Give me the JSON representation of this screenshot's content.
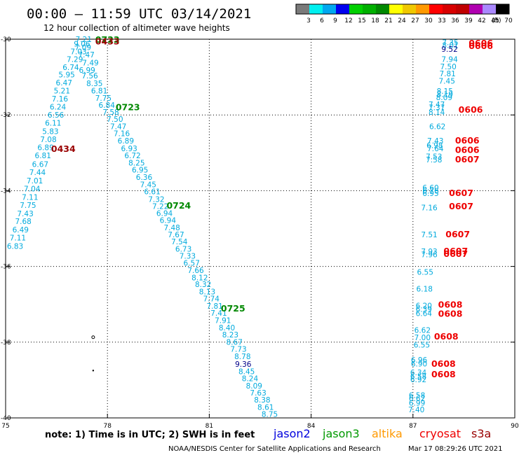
{
  "header": {
    "title": "00:00 – 11:59 UTC 03/14/2021",
    "subtitle": "12 hour collection of altimeter wave heights"
  },
  "colorbar": {
    "unit": "(ft)",
    "ticks": [
      "3",
      "6",
      "9",
      "12",
      "15",
      "18",
      "21",
      "24",
      "27",
      "30",
      "33",
      "36",
      "39",
      "42",
      "45",
      "70"
    ],
    "colors": [
      "#7a7a7a",
      "#00f0f0",
      "#00a8f0",
      "#0000f0",
      "#00d000",
      "#00b000",
      "#008800",
      "#ffff00",
      "#f0c800",
      "#ff9900",
      "#ff0000",
      "#d80000",
      "#c00000",
      "#b000b0",
      "#aa88ff",
      "#000000"
    ]
  },
  "footer": {
    "note": "note:  1) Time is in UTC;  2) SWH is in feet",
    "credit": "NOAA/NESDIS Center for Satellite Applications and Research",
    "timestamp": "Mar 17 08:29:26 UTC 2021"
  },
  "satellites": [
    {
      "name": "jason2",
      "color": "#0000dd"
    },
    {
      "name": "jason3",
      "color": "#009900"
    },
    {
      "name": "altika",
      "color": "#ff9900"
    },
    {
      "name": "cryosat",
      "color": "#ee0000"
    },
    {
      "name": "s3a",
      "color": "#990000"
    }
  ],
  "chart_data": {
    "type": "scatter",
    "title": "00:00 – 11:59 UTC 03/14/2021",
    "xlim": [
      75,
      90
    ],
    "ylim": [
      -40,
      -30
    ],
    "xticks": [
      75,
      78,
      81,
      84,
      87,
      90
    ],
    "yticks": [
      -30,
      -32,
      -34,
      -36,
      -38,
      -40
    ],
    "grid": true,
    "x_tick_labels": [
      "75",
      "78",
      "81",
      "84",
      "87",
      "90"
    ],
    "y_tick_labels": [
      "-30",
      "-32",
      "-34",
      "-36",
      "-38",
      "-40"
    ],
    "series": [
      {
        "name": "jason3",
        "color": "#00aadd",
        "points": [
          {
            "x": 77.3,
            "y": -30.0,
            "v": "7.21"
          },
          {
            "x": 77.25,
            "y": -30.12,
            "v": "9.06"
          },
          {
            "x": 77.28,
            "y": -30.21,
            "v": "7.09"
          },
          {
            "x": 77.15,
            "y": -30.32,
            "v": "7.03"
          },
          {
            "x": 77.38,
            "y": -30.41,
            "v": "7.47"
          },
          {
            "x": 77.04,
            "y": -30.53,
            "v": "7.29"
          },
          {
            "x": 77.5,
            "y": -30.62,
            "v": "7.49"
          },
          {
            "x": 76.92,
            "y": -30.74,
            "v": "6.74"
          },
          {
            "x": 77.4,
            "y": -30.81,
            "v": "6.99"
          },
          {
            "x": 76.8,
            "y": -30.93,
            "v": "5.95"
          },
          {
            "x": 77.48,
            "y": -30.96,
            "v": "7.56"
          },
          {
            "x": 76.72,
            "y": -31.15,
            "v": "6.47"
          },
          {
            "x": 77.62,
            "y": -31.16,
            "v": "8.35"
          },
          {
            "x": 76.66,
            "y": -31.36,
            "v": "5.21"
          },
          {
            "x": 77.76,
            "y": -31.36,
            "v": "6.81"
          },
          {
            "x": 77.88,
            "y": -31.55,
            "v": "7.75"
          },
          {
            "x": 76.6,
            "y": -31.57,
            "v": "7.16"
          },
          {
            "x": 77.98,
            "y": -31.74,
            "v": "6.84"
          },
          {
            "x": 76.54,
            "y": -31.78,
            "v": "6.24"
          },
          {
            "x": 78.1,
            "y": -31.92,
            "v": "7.58"
          },
          {
            "x": 76.48,
            "y": -32.0,
            "v": "6.56"
          },
          {
            "x": 78.22,
            "y": -32.11,
            "v": "7.50"
          },
          {
            "x": 76.4,
            "y": -32.21,
            "v": "6.11"
          },
          {
            "x": 78.32,
            "y": -32.3,
            "v": "7.47"
          },
          {
            "x": 76.32,
            "y": -32.43,
            "v": "5.83"
          },
          {
            "x": 78.42,
            "y": -32.49,
            "v": "7.16"
          },
          {
            "x": 78.54,
            "y": -32.68,
            "v": "6.89"
          },
          {
            "x": 76.26,
            "y": -32.64,
            "v": "7.08"
          },
          {
            "x": 78.64,
            "y": -32.88,
            "v": "6.93"
          },
          {
            "x": 76.18,
            "y": -32.86,
            "v": "6.89"
          },
          {
            "x": 78.74,
            "y": -33.07,
            "v": "6.72"
          },
          {
            "x": 76.1,
            "y": -33.07,
            "v": "6.81"
          },
          {
            "x": 78.86,
            "y": -33.26,
            "v": "8.25"
          },
          {
            "x": 76.02,
            "y": -33.3,
            "v": "6.67"
          },
          {
            "x": 78.96,
            "y": -33.45,
            "v": "6.95"
          },
          {
            "x": 75.94,
            "y": -33.51,
            "v": "7.44"
          },
          {
            "x": 79.08,
            "y": -33.64,
            "v": "6.36"
          },
          {
            "x": 75.86,
            "y": -33.73,
            "v": "7.01"
          },
          {
            "x": 79.2,
            "y": -33.84,
            "v": "7.45"
          },
          {
            "x": 75.78,
            "y": -33.95,
            "v": "7.04"
          },
          {
            "x": 79.32,
            "y": -34.02,
            "v": "6.61"
          },
          {
            "x": 75.72,
            "y": -34.17,
            "v": "7.11"
          },
          {
            "x": 79.44,
            "y": -34.22,
            "v": "7.32"
          },
          {
            "x": 75.66,
            "y": -34.38,
            "v": "7.75"
          },
          {
            "x": 79.56,
            "y": -34.41,
            "v": "7.22"
          },
          {
            "x": 75.58,
            "y": -34.6,
            "v": "7.43"
          },
          {
            "x": 79.68,
            "y": -34.59,
            "v": "6.94"
          },
          {
            "x": 75.52,
            "y": -34.81,
            "v": "7.68"
          },
          {
            "x": 79.78,
            "y": -34.78,
            "v": "6.94"
          },
          {
            "x": 75.44,
            "y": -35.03,
            "v": "6.49"
          },
          {
            "x": 79.9,
            "y": -34.97,
            "v": "7.48"
          },
          {
            "x": 75.36,
            "y": -35.24,
            "v": "7.11"
          },
          {
            "x": 80.02,
            "y": -35.16,
            "v": "7.67"
          },
          {
            "x": 75.28,
            "y": -35.46,
            "v": "6.83"
          },
          {
            "x": 80.12,
            "y": -35.34,
            "v": "7.54"
          },
          {
            "x": 80.24,
            "y": -35.54,
            "v": "6.73"
          },
          {
            "x": 80.36,
            "y": -35.72,
            "v": "7.33"
          },
          {
            "x": 80.48,
            "y": -35.91,
            "v": "6.57"
          },
          {
            "x": 80.6,
            "y": -36.1,
            "v": "7.66"
          },
          {
            "x": 80.72,
            "y": -36.29,
            "v": "8.12"
          },
          {
            "x": 80.82,
            "y": -36.47,
            "v": "8.32"
          },
          {
            "x": 80.94,
            "y": -36.66,
            "v": "8.13"
          },
          {
            "x": 81.06,
            "y": -36.85,
            "v": "7.74"
          },
          {
            "x": 81.16,
            "y": -37.04,
            "v": "7.81"
          },
          {
            "x": 81.28,
            "y": -37.23,
            "v": "7.41"
          },
          {
            "x": 81.4,
            "y": -37.42,
            "v": "7.91"
          },
          {
            "x": 81.52,
            "y": -37.62,
            "v": "8.40"
          },
          {
            "x": 81.62,
            "y": -37.8,
            "v": "8.23"
          },
          {
            "x": 81.74,
            "y": -37.99,
            "v": "8.67"
          },
          {
            "x": 81.86,
            "y": -38.18,
            "v": "7.73"
          },
          {
            "x": 81.98,
            "y": -38.37,
            "v": "8.78"
          },
          {
            "x": 82.1,
            "y": -38.77,
            "v": "8.45"
          },
          {
            "x": 82.2,
            "y": -38.96,
            "v": "8.24"
          },
          {
            "x": 82.32,
            "y": -39.15,
            "v": "8.09"
          },
          {
            "x": 82.44,
            "y": -39.33,
            "v": "7.63"
          },
          {
            "x": 82.56,
            "y": -39.52,
            "v": "8.38"
          },
          {
            "x": 82.66,
            "y": -39.71,
            "v": "8.61"
          },
          {
            "x": 82.78,
            "y": -39.9,
            "v": "8.75"
          },
          {
            "x": 87.7,
            "y": -31.72,
            "v": "7.47"
          },
          {
            "x": 87.7,
            "y": -31.8,
            "v": "7.37"
          },
          {
            "x": 87.7,
            "y": -31.92,
            "v": "8.14"
          },
          {
            "x": 87.72,
            "y": -32.3,
            "v": "6.62"
          },
          {
            "x": 87.66,
            "y": -32.68,
            "v": "7.43"
          },
          {
            "x": 87.64,
            "y": -32.8,
            "v": "6.98"
          },
          {
            "x": 87.66,
            "y": -32.88,
            "v": "7.64"
          },
          {
            "x": 87.62,
            "y": -33.1,
            "v": "7.53"
          },
          {
            "x": 87.62,
            "y": -33.18,
            "v": "7.58"
          },
          {
            "x": 87.52,
            "y": -33.92,
            "v": "6.60"
          },
          {
            "x": 87.52,
            "y": -34.0,
            "v": "6.76"
          },
          {
            "x": 87.52,
            "y": -34.07,
            "v": "6.95"
          },
          {
            "x": 87.48,
            "y": -34.45,
            "v": "7.16"
          },
          {
            "x": 87.48,
            "y": -35.16,
            "v": "7.51"
          },
          {
            "x": 87.48,
            "y": -35.6,
            "v": "7.93"
          },
          {
            "x": 87.48,
            "y": -35.68,
            "v": "7.96"
          },
          {
            "x": 87.36,
            "y": -36.15,
            "v": "6.55"
          },
          {
            "x": 87.34,
            "y": -36.59,
            "v": "6.18"
          },
          {
            "x": 87.32,
            "y": -37.03,
            "v": "6.20"
          },
          {
            "x": 87.32,
            "y": -37.13,
            "v": "6.39"
          },
          {
            "x": 87.32,
            "y": -37.24,
            "v": "6.64"
          },
          {
            "x": 87.28,
            "y": -37.68,
            "v": "6.62"
          },
          {
            "x": 87.28,
            "y": -37.87,
            "v": "7.00"
          },
          {
            "x": 87.26,
            "y": -38.07,
            "v": "6.55"
          },
          {
            "x": 87.18,
            "y": -38.47,
            "v": "6.96"
          },
          {
            "x": 87.18,
            "y": -38.57,
            "v": "6.90"
          },
          {
            "x": 87.16,
            "y": -38.8,
            "v": "6.34"
          },
          {
            "x": 87.16,
            "y": -38.9,
            "v": "6.58"
          },
          {
            "x": 87.16,
            "y": -38.98,
            "v": "6.92"
          },
          {
            "x": 87.12,
            "y": -39.4,
            "v": "6.58"
          },
          {
            "x": 87.12,
            "y": -39.48,
            "v": "6.62"
          },
          {
            "x": 87.12,
            "y": -39.6,
            "v": "6.99"
          },
          {
            "x": 87.1,
            "y": -39.78,
            "v": "7.40"
          },
          {
            "x": 88.1,
            "y": -30.08,
            "v": "7.35"
          },
          {
            "x": 88.1,
            "y": -30.16,
            "v": "8.01"
          },
          {
            "x": 88.08,
            "y": -30.53,
            "v": "7.94"
          },
          {
            "x": 88.04,
            "y": -30.72,
            "v": "7.50"
          },
          {
            "x": 88.02,
            "y": -30.91,
            "v": "7.81"
          },
          {
            "x": 88.0,
            "y": -31.1,
            "v": "7.45"
          },
          {
            "x": 87.94,
            "y": -31.37,
            "v": "8.15"
          },
          {
            "x": 87.94,
            "y": -31.45,
            "v": "8.19"
          },
          {
            "x": 87.92,
            "y": -31.53,
            "v": "8.09"
          }
        ]
      },
      {
        "name": "jason2",
        "color": "#000088",
        "points": [
          {
            "x": 88.08,
            "y": -30.26,
            "v": "9.52"
          },
          {
            "x": 82.0,
            "y": -38.58,
            "v": "9.36"
          }
        ]
      }
    ],
    "time_labels": [
      {
        "x": 78.0,
        "y": -30.0,
        "t": "0723",
        "color": "#008800"
      },
      {
        "x": 78.0,
        "y": -30.05,
        "t": "0433",
        "color": "#990000"
      },
      {
        "x": 78.6,
        "y": -31.78,
        "t": "0723",
        "color": "#008800"
      },
      {
        "x": 76.7,
        "y": -32.88,
        "t": "0434",
        "color": "#990000"
      },
      {
        "x": 80.1,
        "y": -34.38,
        "t": "0724",
        "color": "#008800"
      },
      {
        "x": 81.7,
        "y": -37.1,
        "t": "0725",
        "color": "#008800"
      },
      {
        "x": 89.0,
        "y": -30.09,
        "t": "0606",
        "color": "#ee0000"
      },
      {
        "x": 89.0,
        "y": -30.17,
        "t": "0606",
        "color": "#ee0000"
      },
      {
        "x": 88.7,
        "y": -31.85,
        "t": "0606",
        "color": "#ee0000"
      },
      {
        "x": 88.6,
        "y": -32.66,
        "t": "0606",
        "color": "#ee0000"
      },
      {
        "x": 88.6,
        "y": -32.91,
        "t": "0606",
        "color": "#ee0000"
      },
      {
        "x": 88.6,
        "y": -33.16,
        "t": "0607",
        "color": "#ee0000"
      },
      {
        "x": 88.42,
        "y": -34.05,
        "t": "0607",
        "color": "#ee0000"
      },
      {
        "x": 88.42,
        "y": -34.4,
        "t": "0607",
        "color": "#ee0000"
      },
      {
        "x": 88.32,
        "y": -35.14,
        "t": "0607",
        "color": "#ee0000"
      },
      {
        "x": 88.26,
        "y": -35.58,
        "t": "0607",
        "color": "#ee0000"
      },
      {
        "x": 88.26,
        "y": -35.66,
        "t": "0607",
        "color": "#ee0000"
      },
      {
        "x": 88.1,
        "y": -37.0,
        "t": "0608",
        "color": "#ee0000"
      },
      {
        "x": 88.1,
        "y": -37.24,
        "t": "0608",
        "color": "#ee0000"
      },
      {
        "x": 87.98,
        "y": -37.84,
        "t": "0608",
        "color": "#ee0000"
      },
      {
        "x": 87.9,
        "y": -38.56,
        "t": "0608",
        "color": "#ee0000"
      },
      {
        "x": 87.9,
        "y": -38.84,
        "t": "0608",
        "color": "#ee0000"
      }
    ],
    "markers": [
      {
        "x": 77.58,
        "y": -37.87,
        "shape": "circle"
      },
      {
        "x": 77.58,
        "y": -38.75,
        "shape": "dot"
      }
    ]
  }
}
